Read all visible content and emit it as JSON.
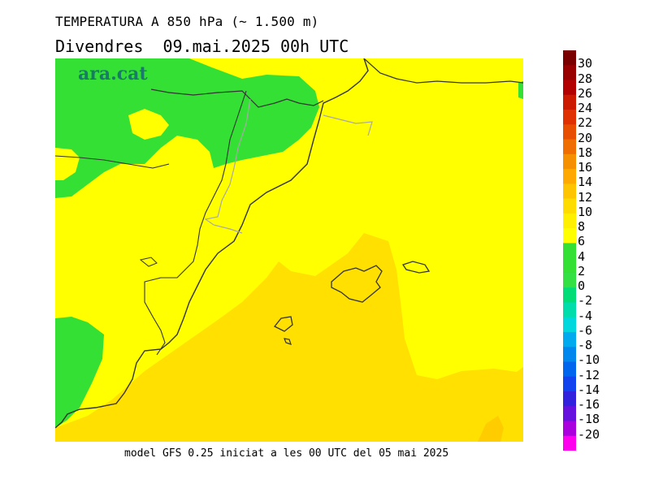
{
  "header": {
    "title": "TEMPERATURA A 850 hPa (~ 1.500 m)",
    "subtitle": "Divendres  09.mai.2025 00h UTC"
  },
  "logo": {
    "text": "ara.cat"
  },
  "footer": {
    "text": "model GFS 0.25 iniciat a les 00 UTC del 05 mai 2025"
  },
  "colors": {
    "band_0_6": "#33e033",
    "band_6_8": "#ffff00",
    "band_8_10": "#ffe000",
    "band_10_12": "#ffcc00",
    "coast": "#333333",
    "border": "#a8a8a8"
  },
  "legend": {
    "labels": [
      "30",
      "28",
      "26",
      "24",
      "22",
      "20",
      "18",
      "16",
      "14",
      "12",
      "10",
      "8",
      "6",
      "4",
      "2",
      "0",
      "-2",
      "-4",
      "-6",
      "-8",
      "-10",
      "-12",
      "-14",
      "-16",
      "-18",
      "-20"
    ],
    "colors": [
      "#7a0000",
      "#990000",
      "#b30000",
      "#cc1a00",
      "#e03000",
      "#e84e00",
      "#f06e00",
      "#f79000",
      "#ffa800",
      "#ffc400",
      "#ffdc00",
      "#ffef00",
      "#ffff00",
      "#33e033",
      "#33e033",
      "#33e043",
      "#00dd77",
      "#00dcaa",
      "#00d8dd",
      "#00aaee",
      "#0088ee",
      "#0066ee",
      "#1144ee",
      "#3322dd",
      "#6611dd",
      "#aa00dd",
      "#ff00ee"
    ]
  }
}
